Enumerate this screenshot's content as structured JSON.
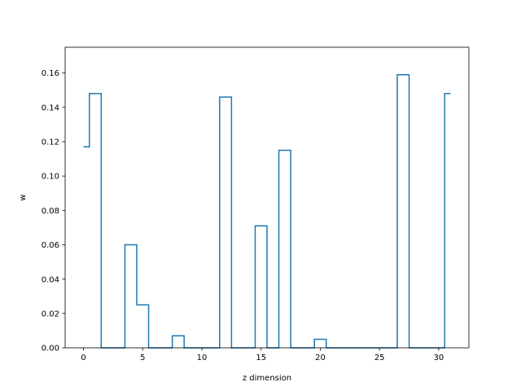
{
  "chart_data": {
    "type": "line",
    "drawstyle": "steps-mid",
    "xlabel": "z dimension",
    "ylabel": "w",
    "xlim": [
      -1.55,
      32.55
    ],
    "ylim": [
      0.0,
      0.175
    ],
    "xticks": [
      0,
      5,
      10,
      15,
      20,
      25,
      30
    ],
    "xtick_labels": [
      "0",
      "5",
      "10",
      "15",
      "20",
      "25",
      "30"
    ],
    "yticks": [
      0.0,
      0.02,
      0.04,
      0.06,
      0.08,
      0.1,
      0.12,
      0.14,
      0.16
    ],
    "ytick_labels": [
      "0.00",
      "0.02",
      "0.04",
      "0.06",
      "0.08",
      "0.10",
      "0.12",
      "0.14",
      "0.16"
    ],
    "grid": false,
    "color": "#1f77b4",
    "series": [
      {
        "x": [
          0,
          1,
          2,
          3,
          4,
          5,
          6,
          7,
          8,
          9,
          10,
          11,
          12,
          13,
          14,
          15,
          16,
          17,
          18,
          19,
          20,
          21,
          22,
          23,
          24,
          25,
          26,
          27,
          28,
          29,
          30,
          31
        ],
        "values": [
          0.117,
          0.148,
          0,
          0,
          0.06,
          0.025,
          0,
          0,
          0.007,
          0,
          0,
          0,
          0.146,
          0,
          0,
          0.071,
          0,
          0.115,
          0,
          0,
          0.005,
          0,
          0,
          0,
          0,
          0,
          0,
          0.159,
          0,
          0,
          0,
          0.148
        ]
      }
    ]
  }
}
